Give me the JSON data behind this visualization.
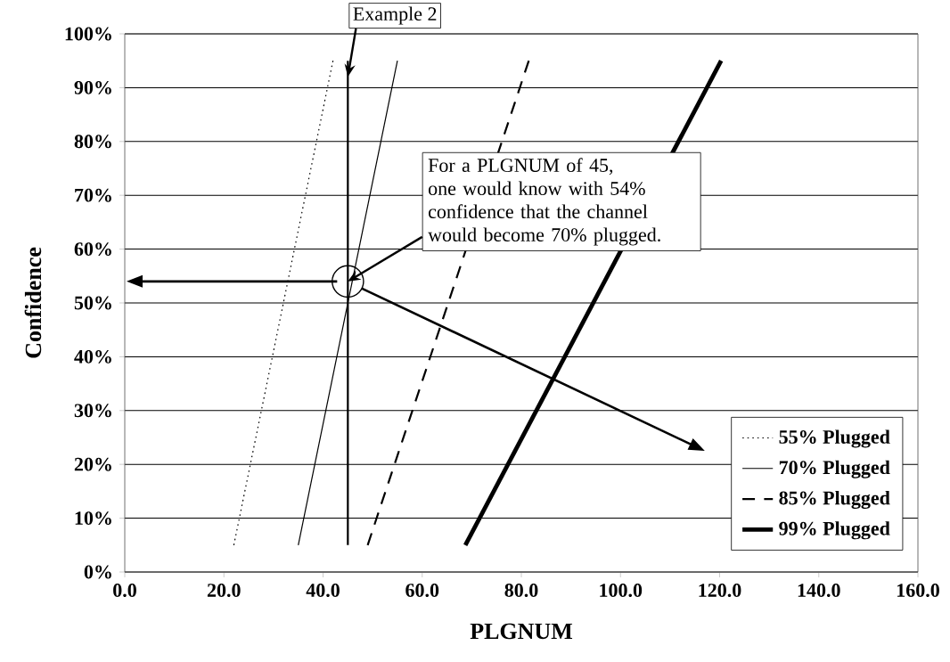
{
  "chart_data": {
    "type": "line",
    "xlabel": "PLGNUM",
    "ylabel": "Confidence",
    "xlim": [
      0,
      160
    ],
    "ylim": [
      0,
      100
    ],
    "xticks": [
      {
        "value": 0,
        "label": "0.0"
      },
      {
        "value": 20,
        "label": "20.0"
      },
      {
        "value": 40,
        "label": "40.0"
      },
      {
        "value": 60,
        "label": "60.0"
      },
      {
        "value": 80,
        "label": "80.0"
      },
      {
        "value": 100,
        "label": "100.0"
      },
      {
        "value": 120,
        "label": "120.0"
      },
      {
        "value": 140,
        "label": "140.0"
      },
      {
        "value": 160,
        "label": "160.0"
      }
    ],
    "yticks": [
      {
        "value": 0,
        "label": "0%"
      },
      {
        "value": 10,
        "label": "10%"
      },
      {
        "value": 20,
        "label": "20%"
      },
      {
        "value": 30,
        "label": "30%"
      },
      {
        "value": 40,
        "label": "40%"
      },
      {
        "value": 50,
        "label": "50%"
      },
      {
        "value": 60,
        "label": "60%"
      },
      {
        "value": 70,
        "label": "70%"
      },
      {
        "value": 80,
        "label": "80%"
      },
      {
        "value": 90,
        "label": "90%"
      },
      {
        "value": 100,
        "label": "100%"
      }
    ],
    "grid": "y",
    "legend": "bottom right",
    "marker": "none",
    "series": [
      {
        "name": "55% Plugged",
        "color": "#000000",
        "line_style": "dotted",
        "x": [
          22,
          42
        ],
        "values": [
          5,
          95
        ]
      },
      {
        "name": "70% Plugged",
        "color": "#000000",
        "line_style": "solid",
        "x": [
          35,
          55
        ],
        "values": [
          5,
          95
        ]
      },
      {
        "name": "85% Plugged",
        "color": "#000000",
        "line_style": "dashed",
        "x": [
          49,
          81.5
        ],
        "values": [
          5,
          95
        ]
      },
      {
        "name": "99% Plugged",
        "color": "#000000",
        "line_style": "solid",
        "x": [
          68.7,
          120.3
        ],
        "values": [
          5,
          95
        ]
      },
      {
        "color": "#000000",
        "line_style": "solid",
        "x": [
          45,
          45
        ],
        "values": [
          5,
          95
        ]
      }
    ],
    "annotations": [
      {
        "text": "Example 2",
        "x": 45,
        "y": 92
      },
      {
        "text": "For a PLGNUM of 45, one would know with 54% confidence that the channel would become 70% plugged.",
        "x": 45,
        "y": 54
      }
    ]
  }
}
